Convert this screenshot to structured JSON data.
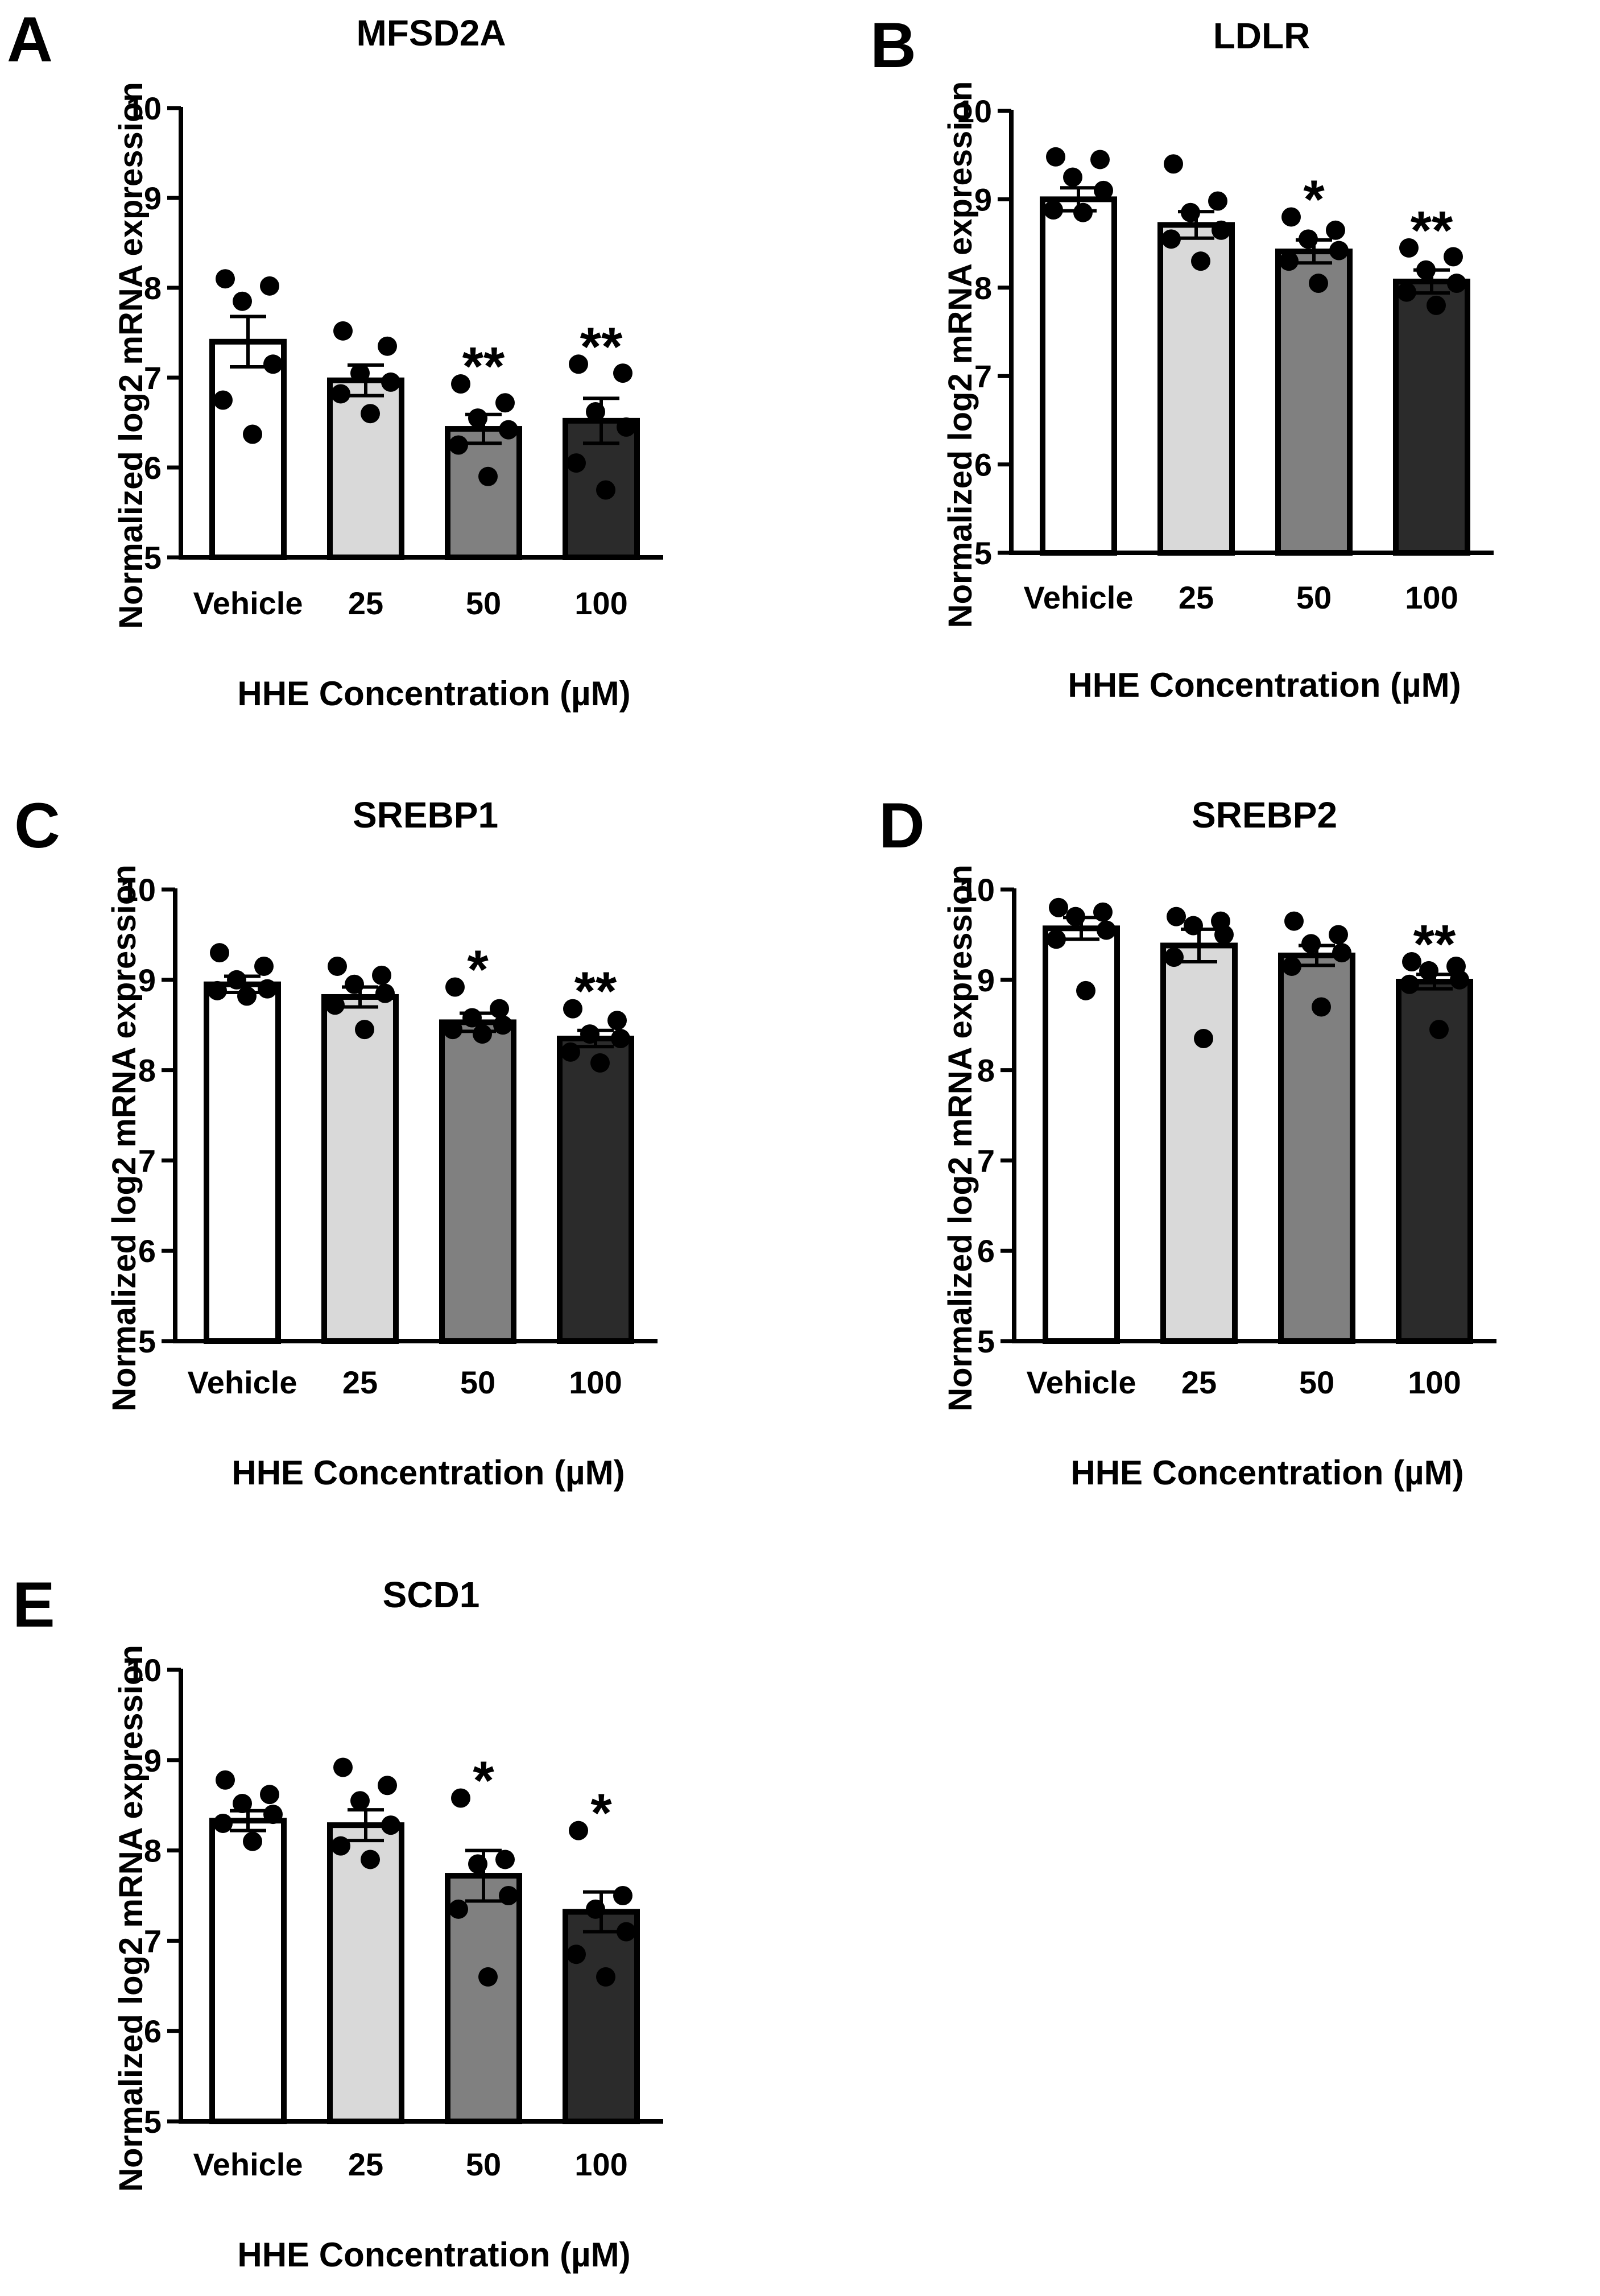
{
  "figure": {
    "common": {
      "categories": [
        "Vehicle",
        "25",
        "50",
        "100"
      ],
      "bar_colors": [
        "#ffffff",
        "#d9d9d9",
        "#808080",
        "#2b2b2b"
      ],
      "xlabel": "HHE Concentration (µM)",
      "ylabel": "Normalized log2 mRNA expression"
    }
  },
  "chart_data": [
    {
      "panel": "A",
      "type": "bar",
      "title": "MFSD2A",
      "categories": [
        "Vehicle",
        "25",
        "50",
        "100"
      ],
      "values": [
        7.4,
        6.97,
        6.43,
        6.52
      ],
      "errors": [
        0.28,
        0.17,
        0.16,
        0.25
      ],
      "points": [
        [
          8.1,
          8.02,
          7.85,
          7.15,
          6.75,
          6.37
        ],
        [
          7.52,
          7.35,
          7.05,
          6.95,
          6.82,
          6.6
        ],
        [
          6.93,
          6.72,
          6.55,
          6.42,
          6.25,
          5.9
        ],
        [
          7.15,
          7.05,
          6.62,
          6.45,
          6.05,
          5.75
        ]
      ],
      "significance": [
        "",
        "",
        "**",
        "**"
      ],
      "xlabel": "HHE Concentration (µM)",
      "ylabel": "Normalized log2 mRNA expression",
      "yticks": [
        "5",
        "6",
        "7",
        "8",
        "9",
        "10"
      ],
      "ylim": [
        5,
        10
      ]
    },
    {
      "panel": "B",
      "type": "bar",
      "title": "LDLR",
      "categories": [
        "Vehicle",
        "25",
        "50",
        "100"
      ],
      "values": [
        9.0,
        8.71,
        8.41,
        8.07
      ],
      "errors": [
        0.13,
        0.15,
        0.13,
        0.13
      ],
      "points": [
        [
          9.48,
          9.45,
          9.25,
          9.1,
          8.88,
          8.85
        ],
        [
          9.4,
          8.98,
          8.85,
          8.65,
          8.55,
          8.3
        ],
        [
          8.8,
          8.65,
          8.55,
          8.42,
          8.3,
          8.05
        ],
        [
          8.45,
          8.35,
          8.2,
          8.05,
          7.95,
          7.8
        ]
      ],
      "significance": [
        "",
        "",
        "*",
        "**"
      ],
      "xlabel": "HHE Concentration (µM)",
      "ylabel": "Normalized log2 mRNA expression",
      "yticks": [
        "5",
        "6",
        "7",
        "8",
        "9",
        "10"
      ],
      "ylim": [
        5,
        10
      ]
    },
    {
      "panel": "C",
      "type": "bar",
      "title": "SREBP1",
      "categories": [
        "Vehicle",
        "25",
        "50",
        "100"
      ],
      "values": [
        8.95,
        8.81,
        8.53,
        8.35
      ],
      "errors": [
        0.09,
        0.11,
        0.1,
        0.09
      ],
      "points": [
        [
          9.3,
          9.15,
          9.0,
          8.9,
          8.88,
          8.82
        ],
        [
          9.15,
          9.05,
          8.95,
          8.85,
          8.72,
          8.45
        ],
        [
          8.92,
          8.68,
          8.58,
          8.5,
          8.45,
          8.4
        ],
        [
          8.68,
          8.55,
          8.4,
          8.35,
          8.2,
          8.08
        ]
      ],
      "significance": [
        "",
        "",
        "*",
        "**"
      ],
      "xlabel": "HHE Concentration (µM)",
      "ylabel": "Normalized log2 mRNA expression",
      "yticks": [
        "5",
        "6",
        "7",
        "8",
        "9",
        "10"
      ],
      "ylim": [
        5,
        10
      ]
    },
    {
      "panel": "D",
      "type": "bar",
      "title": "SREBP2",
      "categories": [
        "Vehicle",
        "25",
        "50",
        "100"
      ],
      "values": [
        9.57,
        9.38,
        9.27,
        8.98
      ],
      "errors": [
        0.12,
        0.18,
        0.11,
        0.08
      ],
      "points": [
        [
          9.8,
          9.75,
          9.7,
          9.55,
          9.45,
          8.88
        ],
        [
          9.7,
          9.65,
          9.6,
          9.5,
          9.25,
          8.35
        ],
        [
          9.65,
          9.5,
          9.4,
          9.3,
          9.15,
          8.7
        ],
        [
          9.2,
          9.15,
          9.1,
          9.0,
          8.95,
          8.45
        ]
      ],
      "significance": [
        "",
        "",
        "",
        "**"
      ],
      "xlabel": "HHE Concentration (µM)",
      "ylabel": "Normalized log2 mRNA expression",
      "yticks": [
        "5",
        "6",
        "7",
        "8",
        "9",
        "10"
      ],
      "ylim": [
        5,
        10
      ]
    },
    {
      "panel": "E",
      "type": "bar",
      "title": "SCD1",
      "categories": [
        "Vehicle",
        "25",
        "50",
        "100"
      ],
      "values": [
        8.33,
        8.28,
        7.72,
        7.32
      ],
      "errors": [
        0.11,
        0.17,
        0.28,
        0.22
      ],
      "points": [
        [
          8.78,
          8.62,
          8.52,
          8.4,
          8.3,
          8.1
        ],
        [
          8.92,
          8.72,
          8.55,
          8.28,
          8.05,
          7.9
        ],
        [
          8.58,
          7.9,
          7.85,
          7.5,
          7.35,
          6.6
        ],
        [
          8.22,
          7.5,
          7.35,
          7.1,
          6.85,
          6.6
        ]
      ],
      "significance": [
        "",
        "",
        "*",
        "*"
      ],
      "xlabel": "HHE Concentration (µM)",
      "ylabel": "Normalized log2 mRNA expression",
      "yticks": [
        "5",
        "6",
        "7",
        "8",
        "9",
        "10"
      ],
      "ylim": [
        5,
        10
      ]
    }
  ]
}
